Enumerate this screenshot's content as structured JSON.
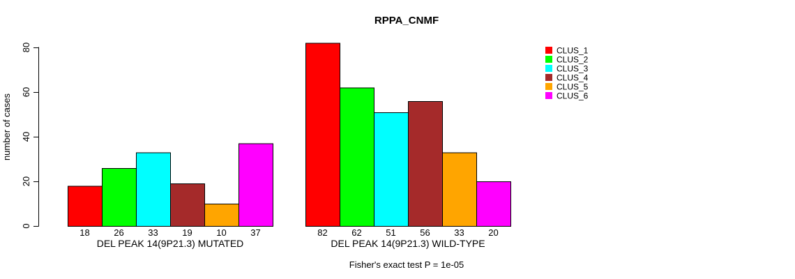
{
  "chart_data": {
    "type": "bar",
    "title": "RPPA_CNMF",
    "ylabel": "number of cases",
    "xlabel": "",
    "ylim": [
      0,
      88
    ],
    "yticks": [
      0,
      20,
      40,
      60,
      80
    ],
    "grid": false,
    "legend_position": "right-inside",
    "series": [
      {
        "name": "CLUS_1",
        "color": "#ff0000"
      },
      {
        "name": "CLUS_2",
        "color": "#00ff00"
      },
      {
        "name": "CLUS_3",
        "color": "#00ffff"
      },
      {
        "name": "CLUS_4",
        "color": "#a52a2a"
      },
      {
        "name": "CLUS_5",
        "color": "#ffa500"
      },
      {
        "name": "CLUS_6",
        "color": "#ff00ff"
      }
    ],
    "groups": [
      {
        "key": "mutated",
        "label": "DEL PEAK 14(9P21.3) MUTATED",
        "values": [
          18,
          26,
          33,
          19,
          10,
          37
        ]
      },
      {
        "key": "wild-type",
        "label": "DEL PEAK 14(9P21.3) WILD-TYPE",
        "values": [
          82,
          62,
          51,
          56,
          33,
          20
        ]
      }
    ],
    "bar_value_labels_shown": true,
    "annotation": "Fisher's exact test P = 1e-05",
    "colors": {
      "axis": "#000000",
      "text": "#000000",
      "bar_border": "#000000",
      "background": "#ffffff"
    }
  }
}
